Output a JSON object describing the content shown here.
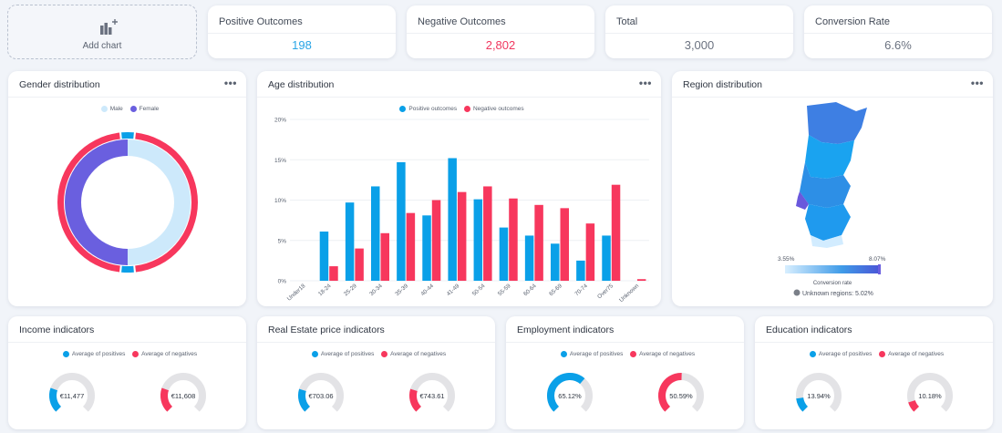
{
  "toolbar": {
    "add_chart_label": "Add chart"
  },
  "kpis": [
    {
      "title": "Positive Outcomes",
      "value": "198",
      "color": "#2aa5e6"
    },
    {
      "title": "Negative Outcomes",
      "value": "2,802",
      "color": "#f0375f"
    },
    {
      "title": "Total",
      "value": "3,000",
      "color": "#6b7280"
    },
    {
      "title": "Conversion Rate",
      "value": "6.6%",
      "color": "#6b7280"
    }
  ],
  "colors": {
    "positive": "#0aa0e8",
    "negative": "#f7375d",
    "male": "#cde9fb",
    "female": "#6a5fdf",
    "gauge_track": "#e3e3e6"
  },
  "gender": {
    "title": "Gender distribution",
    "menu": "•••",
    "legend": [
      "Male",
      "Female"
    ],
    "chart_data": {
      "type": "pie",
      "inner_ring": {
        "series": "Gender",
        "slices": [
          {
            "name": "Male",
            "value": 50
          },
          {
            "name": "Female",
            "value": 50
          }
        ]
      },
      "outer_ring": {
        "series": "Outcome",
        "slices": [
          {
            "name": "Positive outcomes",
            "value": 6.6
          },
          {
            "name": "Negative outcomes",
            "value": 93.4
          }
        ]
      }
    }
  },
  "age": {
    "title": "Age distribution",
    "menu": "•••",
    "chart_data": {
      "type": "bar",
      "categories": [
        "Under18",
        "18-24",
        "25-29",
        "30-34",
        "35-39",
        "40-44",
        "41-49",
        "50-54",
        "55-59",
        "60-64",
        "65-69",
        "70-74",
        "Over75",
        "Unknown"
      ],
      "series": [
        {
          "name": "Positive outcomes",
          "values": [
            0,
            6.1,
            9.7,
            11.7,
            14.7,
            8.1,
            15.2,
            10.1,
            6.6,
            5.6,
            4.6,
            2.5,
            5.6,
            0
          ]
        },
        {
          "name": "Negative outcomes",
          "values": [
            0,
            1.8,
            4.0,
            5.9,
            8.4,
            10.0,
            11.0,
            11.7,
            10.2,
            9.4,
            9.0,
            7.1,
            11.9,
            0.2
          ]
        }
      ],
      "yticks": [
        "0%",
        "5%",
        "10%",
        "15%",
        "20%"
      ],
      "ylim": [
        0,
        20
      ],
      "grid": true,
      "legend_position": "top"
    }
  },
  "region": {
    "title": "Region distribution",
    "menu": "•••",
    "scale_min": "3.55%",
    "scale_max": "8.07%",
    "scale_label": "Conversion rate",
    "unknown": "Unknown regions: 5.02%"
  },
  "indicator_legend": [
    "Average of positives",
    "Average of negatives"
  ],
  "indicators": [
    {
      "title": "Income indicators",
      "positive": {
        "label": "€11,477",
        "fraction": 0.24
      },
      "negative": {
        "label": "€11,608",
        "fraction": 0.24
      }
    },
    {
      "title": "Real Estate price indicators",
      "positive": {
        "label": "€703.06",
        "fraction": 0.23
      },
      "negative": {
        "label": "€743.61",
        "fraction": 0.23
      }
    },
    {
      "title": "Employment indicators",
      "positive": {
        "label": "65.12%",
        "fraction": 0.6512
      },
      "negative": {
        "label": "50.59%",
        "fraction": 0.5059
      }
    },
    {
      "title": "Education indicators",
      "positive": {
        "label": "13.94%",
        "fraction": 0.1394
      },
      "negative": {
        "label": "10.18%",
        "fraction": 0.1018
      }
    }
  ]
}
